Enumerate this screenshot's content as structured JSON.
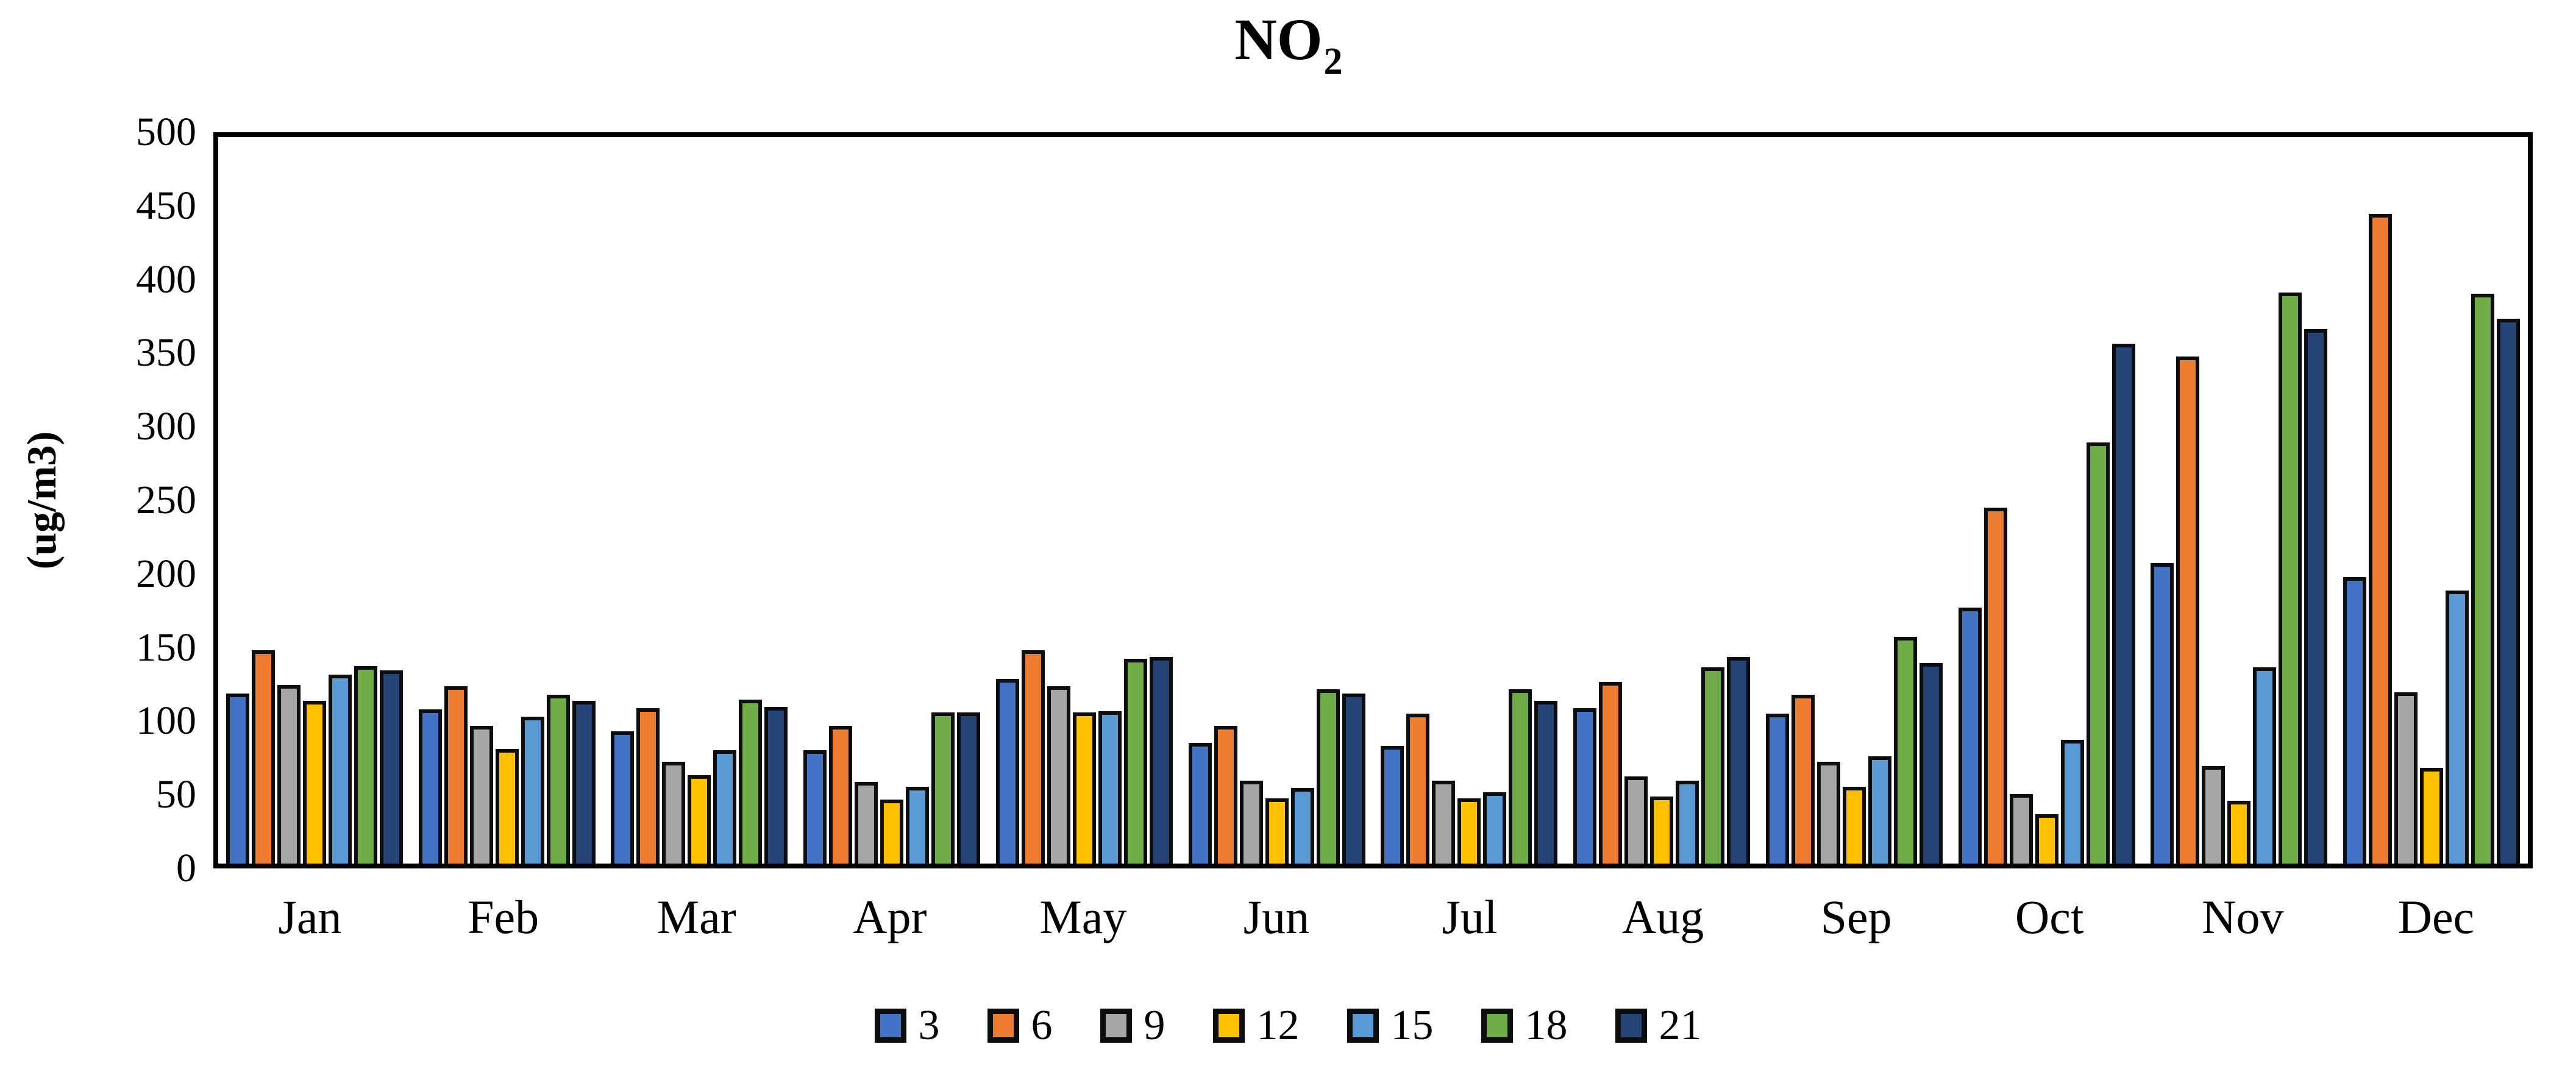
{
  "title": {
    "main": "NO",
    "sub": "2"
  },
  "y_axis": {
    "label": "(ug/m3)",
    "min": 0,
    "max": 500,
    "tick_labels": [
      "500",
      "450",
      "400",
      "350",
      "300",
      "250",
      "200",
      "150",
      "100",
      "50",
      "0"
    ]
  },
  "legend": {
    "entries": [
      "3",
      "6",
      "9",
      "12",
      "15",
      "18",
      "21"
    ]
  },
  "chart_data": {
    "type": "bar",
    "title": "NO2",
    "xlabel": "",
    "ylabel": "(ug/m3)",
    "ylim": [
      0,
      500
    ],
    "ytick_step": 50,
    "grid": false,
    "legend_position": "bottom",
    "categories": [
      "Jan",
      "Feb",
      "Mar",
      "Apr",
      "May",
      "Jun",
      "Jul",
      "Aug",
      "Sep",
      "Oct",
      "Nov",
      "Dec"
    ],
    "series": [
      {
        "name": "3",
        "color": "#4472C4",
        "values": [
          117,
          106,
          91,
          78,
          127,
          83,
          81,
          107,
          103,
          176,
          207,
          197
        ]
      },
      {
        "name": "6",
        "color": "#ED7D31",
        "values": [
          147,
          122,
          107,
          95,
          147,
          95,
          103,
          125,
          116,
          245,
          349,
          447
        ]
      },
      {
        "name": "9",
        "color": "#A5A5A5",
        "values": [
          123,
          95,
          70,
          56,
          122,
          57,
          57,
          60,
          70,
          48,
          67,
          118
        ]
      },
      {
        "name": "12",
        "color": "#FFC000",
        "values": [
          112,
          79,
          61,
          44,
          104,
          45,
          45,
          46,
          53,
          34,
          43,
          66
        ]
      },
      {
        "name": "15",
        "color": "#5B9BD5",
        "values": [
          130,
          101,
          78,
          53,
          105,
          52,
          49,
          57,
          74,
          85,
          135,
          188
        ]
      },
      {
        "name": "18",
        "color": "#70AD47",
        "values": [
          136,
          116,
          113,
          104,
          141,
          120,
          120,
          135,
          156,
          290,
          393,
          392
        ]
      },
      {
        "name": "21",
        "color": "#264478",
        "values": [
          133,
          112,
          108,
          104,
          142,
          117,
          112,
          142,
          138,
          358,
          368,
          375
        ]
      }
    ]
  }
}
